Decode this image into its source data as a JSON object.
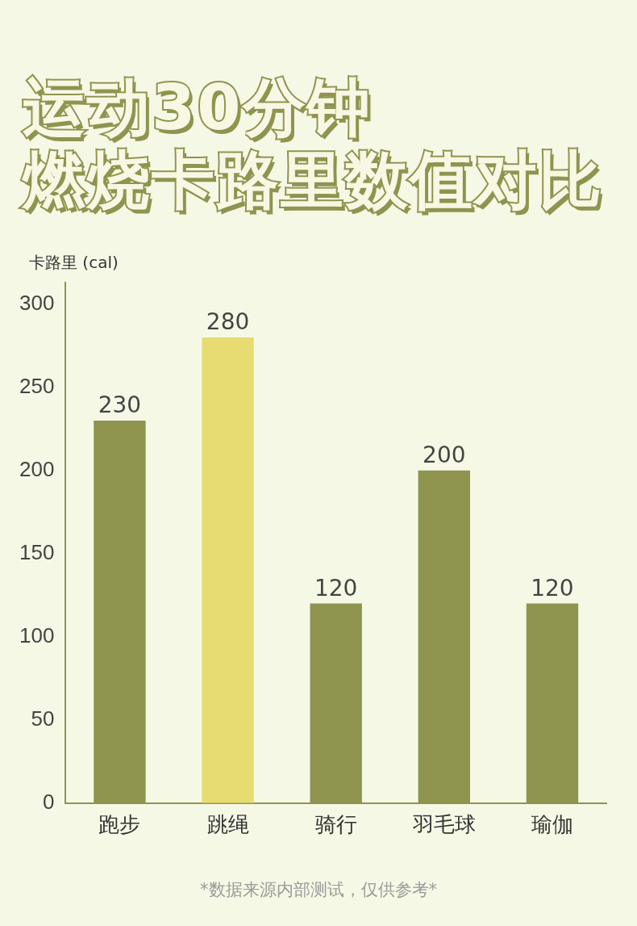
{
  "chart_data": {
    "type": "bar",
    "title": "运动30分钟",
    "subtitle": "燃烧卡路里数值对比",
    "ylabel": "卡路里 (cal)",
    "categories": [
      "跑步",
      "跳绳",
      "骑行",
      "羽毛球",
      "瑜伽"
    ],
    "values": [
      230,
      280,
      120,
      200,
      120
    ],
    "colors": [
      "#8f944e",
      "#e6dc72",
      "#8f944e",
      "#8f944e",
      "#8f944e"
    ],
    "ylim": [
      0,
      313
    ],
    "yticks": [
      0,
      50,
      100,
      150,
      200,
      250,
      300
    ],
    "grid": false,
    "data_labels": true,
    "annotations": [
      "*数据来源内部测试，仅供参考*"
    ]
  }
}
